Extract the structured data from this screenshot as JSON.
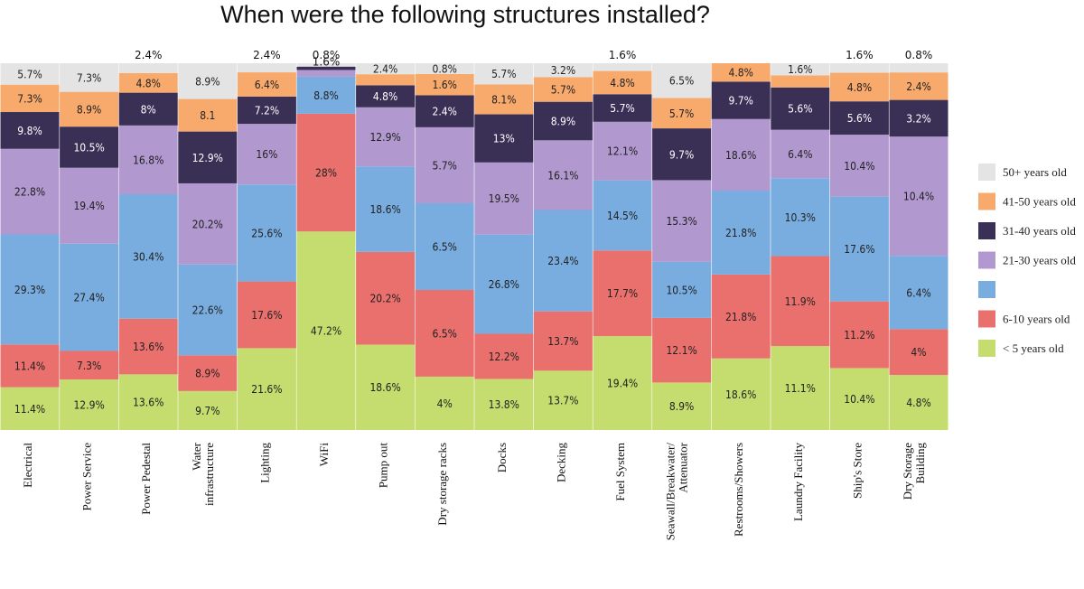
{
  "chart_data": {
    "type": "bar",
    "stacked": true,
    "title": "When were the following structures installed?",
    "xlabel": "",
    "ylabel": "",
    "ylim": [
      0,
      100
    ],
    "legend_position": "right",
    "categories": [
      "Electrical",
      "Power Service",
      "Power Pedestal",
      "Water\ninfrastructure",
      "Lighting",
      "WiFi",
      "Pump out",
      "Dry storage racks",
      "Docks",
      "Decking",
      "Fuel System",
      "Seawall/Breakwater/\nAttenuator",
      "Restrooms/Showers",
      "Laundry Facility",
      "Ship's Store",
      "Dry Storage\nBuilding"
    ],
    "series": [
      {
        "name": "< 5 years old",
        "color": "#c5dc6e",
        "values": [
          11.4,
          12.9,
          13.6,
          9.7,
          21.6,
          47.2,
          18.6,
          4,
          13.8,
          13.7,
          19.4,
          8.9,
          18.6,
          11.1,
          10.4,
          4.8
        ],
        "labels": [
          "11.4%",
          "12.9%",
          "13.6%",
          "9.7%",
          "21.6%",
          "47.2%",
          "18.6%",
          "4%",
          "13.8%",
          "13.7%",
          "19.4%",
          "8.9%",
          "18.6%",
          "11.1%",
          "10.4%",
          "4.8%"
        ]
      },
      {
        "name": "6-10 years old",
        "color": "#e9706d",
        "values": [
          11.4,
          7.3,
          13.6,
          8.9,
          17.6,
          28,
          20.2,
          6.5,
          12.2,
          13.7,
          17.7,
          12.1,
          21.8,
          11.9,
          11.2,
          4
        ],
        "labels": [
          "11.4%",
          "7.3%",
          "13.6%",
          "8.9%",
          "17.6%",
          "28%",
          "20.2%",
          "6.5%",
          "12.2%",
          "13.7%",
          "17.7%",
          "12.1%",
          "21.8%",
          "11.9%",
          "11.2%",
          "4%"
        ]
      },
      {
        "name": "",
        "color": "#79ade0",
        "values": [
          29.3,
          27.4,
          30.4,
          22.6,
          25.6,
          8.8,
          18.6,
          6.5,
          26.8,
          23.4,
          14.5,
          10.5,
          21.8,
          10.3,
          17.6,
          6.4
        ],
        "labels": [
          "29.3%",
          "27.4%",
          "30.4%",
          "22.6%",
          "25.6%",
          "8.8%",
          "18.6%",
          "6.5%",
          "26.8%",
          "23.4%",
          "14.5%",
          "10.5%",
          "21.8%",
          "10.3%",
          "17.6%",
          "6.4%"
        ]
      },
      {
        "name": "21-30 years old",
        "color": "#b198cf",
        "values": [
          22.8,
          19.4,
          16.8,
          20.2,
          16,
          1.6,
          12.9,
          5.7,
          19.5,
          16.1,
          12.1,
          15.3,
          18.6,
          6.4,
          10.4,
          10.4
        ],
        "labels": [
          "22.8%",
          "19.4%",
          "16.8%",
          "20.2%",
          "16%",
          "1.6%",
          "12.9%",
          "5.7%",
          "19.5%",
          "16.1%",
          "12.1%",
          "15.3%",
          "18.6%",
          "6.4%",
          "10.4%",
          "10.4%"
        ]
      },
      {
        "name": "31-40 years old",
        "color": "#3a2f55",
        "values": [
          9.8,
          10.5,
          8,
          12.9,
          7.2,
          0.8,
          4.8,
          2.4,
          13,
          8.9,
          5.7,
          9.7,
          9.7,
          5.6,
          5.6,
          3.2
        ],
        "labels": [
          "9.8%",
          "10.5%",
          "8%",
          "12.9%",
          "7.2%",
          "",
          "4.8%",
          "2.4%",
          "13%",
          "8.9%",
          "5.7%",
          "9.7%",
          "9.7%",
          "5.6%",
          "5.6%",
          "3.2%"
        ]
      },
      {
        "name": "41-50 years old",
        "color": "#f8a96c",
        "values": [
          7.3,
          8.9,
          4.8,
          8.1,
          6.4,
          0,
          2.4,
          1.6,
          8.1,
          5.7,
          4.8,
          5.7,
          4.8,
          1.6,
          4.8,
          2.4
        ],
        "labels": [
          "7.3%",
          "8.9%",
          "4.8%",
          "8.1",
          "6.4%",
          "",
          "",
          "1.6%",
          "8.1%",
          "5.7%",
          "4.8%",
          "5.7%",
          "4.8%",
          "",
          "4.8%",
          "2.4%"
        ]
      },
      {
        "name": "50+ years old",
        "color": "#e4e4e4",
        "values": [
          5.7,
          7.3,
          2.4,
          8.9,
          2.4,
          0.8,
          2.4,
          0.8,
          5.7,
          3.2,
          1.6,
          6.5,
          0,
          1.6,
          1.6,
          0.8
        ],
        "labels": [
          "5.7%",
          "7.3%",
          "2.4%",
          "8.9%",
          "2.4%",
          "0.8%",
          "2.4%",
          "0.8%",
          "5.7%",
          "3.2%",
          "1.6%",
          "6.5%",
          "",
          "1.6%",
          "1.6%",
          "0.8%"
        ]
      }
    ]
  }
}
